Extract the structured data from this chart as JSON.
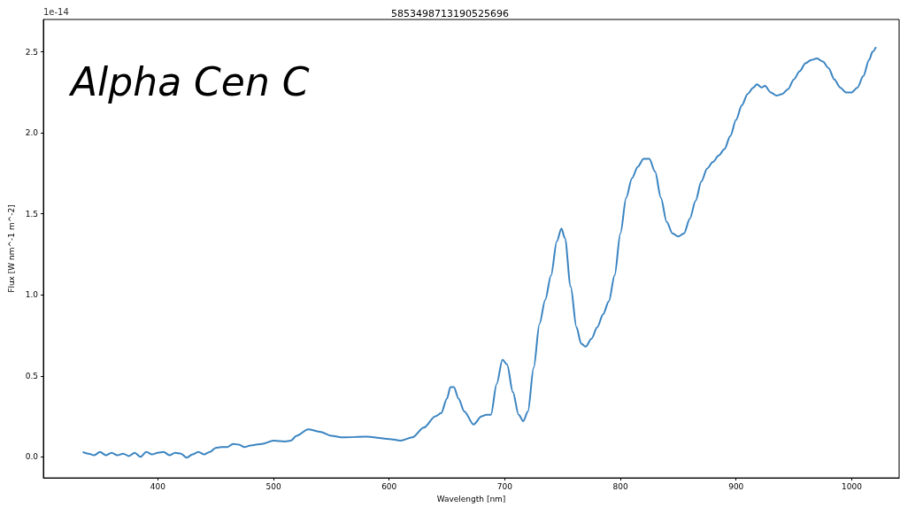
{
  "chart_data": {
    "type": "line",
    "title": "5853498713190525696",
    "xlabel": "Wavelength [nm]",
    "ylabel": "Flux [W nm^-1 m^-2]",
    "annotations": [
      "Alpha Cen C",
      "1e-14"
    ],
    "xlim": [
      301,
      1041
    ],
    "ylim": [
      -0.13,
      2.7
    ],
    "xticks": [
      400,
      500,
      600,
      700,
      800,
      900,
      1000
    ],
    "yticks": [
      {
        "value": 0,
        "label": "0.0"
      },
      0.5,
      {
        "value": 1,
        "label": "1.0"
      },
      1.5,
      {
        "value": 2,
        "label": "2.0"
      },
      2.5
    ],
    "grid": false,
    "marker": "none",
    "line_style": "solid",
    "series": [
      {
        "color": "#3a84c1",
        "x": [
          335,
          340,
          345,
          350,
          355,
          360,
          365,
          370,
          375,
          380,
          385,
          390,
          395,
          400,
          405,
          410,
          415,
          420,
          425,
          430,
          435,
          440,
          445,
          450,
          455,
          460,
          465,
          470,
          475,
          480,
          490,
          500,
          510,
          515,
          520,
          530,
          540,
          550,
          560,
          580,
          600,
          610,
          620,
          630,
          640,
          645,
          650,
          653,
          656,
          660,
          665,
          673,
          680,
          684,
          688,
          693,
          698,
          702,
          707,
          712,
          716,
          720,
          725,
          730,
          735,
          740,
          745,
          749,
          752,
          757,
          762,
          766,
          770,
          775,
          780,
          785,
          790,
          795,
          800,
          805,
          810,
          815,
          820,
          825,
          830,
          835,
          840,
          845,
          850,
          855,
          860,
          865,
          870,
          875,
          880,
          885,
          890,
          895,
          900,
          905,
          910,
          915,
          918,
          922,
          925,
          930,
          935,
          940,
          945,
          950,
          955,
          960,
          965,
          970,
          975,
          980,
          985,
          990,
          995,
          1000,
          1005,
          1010,
          1015,
          1018,
          1021
        ],
        "values": [
          0.03,
          0.02,
          0.01,
          0.03,
          0.01,
          0.025,
          0.01,
          0.02,
          0.005,
          0.025,
          0.0,
          0.03,
          0.015,
          0.025,
          0.03,
          0.01,
          0.025,
          0.02,
          -0.005,
          0.015,
          0.03,
          0.015,
          0.03,
          0.055,
          0.06,
          0.06,
          0.08,
          0.075,
          0.06,
          0.07,
          0.08,
          0.1,
          0.095,
          0.1,
          0.13,
          0.17,
          0.155,
          0.13,
          0.12,
          0.125,
          0.11,
          0.1,
          0.12,
          0.18,
          0.25,
          0.27,
          0.36,
          0.43,
          0.43,
          0.36,
          0.28,
          0.2,
          0.25,
          0.26,
          0.26,
          0.45,
          0.6,
          0.57,
          0.4,
          0.26,
          0.22,
          0.28,
          0.55,
          0.82,
          0.97,
          1.12,
          1.33,
          1.41,
          1.35,
          1.05,
          0.8,
          0.7,
          0.68,
          0.73,
          0.8,
          0.88,
          0.96,
          1.12,
          1.38,
          1.6,
          1.72,
          1.79,
          1.84,
          1.84,
          1.76,
          1.6,
          1.45,
          1.38,
          1.36,
          1.38,
          1.47,
          1.58,
          1.7,
          1.78,
          1.82,
          1.86,
          1.9,
          1.98,
          2.08,
          2.17,
          2.24,
          2.28,
          2.3,
          2.28,
          2.29,
          2.25,
          2.23,
          2.24,
          2.27,
          2.33,
          2.38,
          2.43,
          2.45,
          2.46,
          2.44,
          2.4,
          2.33,
          2.28,
          2.25,
          2.25,
          2.28,
          2.35,
          2.45,
          2.5,
          2.53
        ]
      }
    ]
  }
}
